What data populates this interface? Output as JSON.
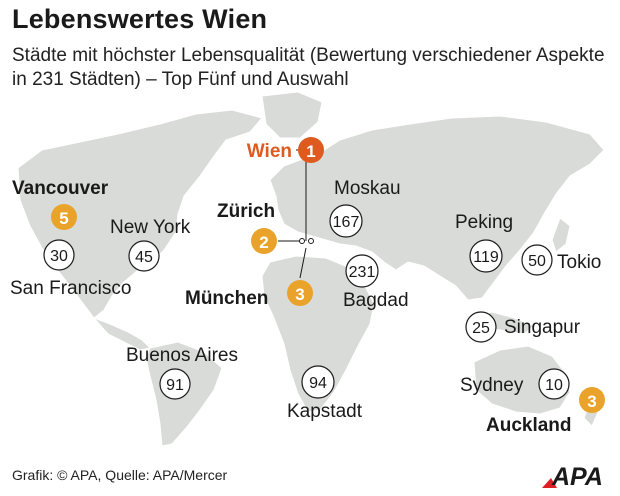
{
  "title": "Lebenswertes Wien",
  "subtitle": "Städte mit höchster Lebensqualität (Bewertung verschiedener Aspekte in 231 Städten) – Top Fünf und Auswahl",
  "source": "Grafik: © APA, Quelle: APA/Mercer",
  "logo_text": "APA",
  "colors": {
    "map": "#d9dbd8",
    "top_gold": "#e9a32a",
    "wien_red": "#de5a1f",
    "outline": "#1a1a1a"
  },
  "cities": [
    {
      "name": "Wien",
      "rank": "1"
    },
    {
      "name": "Zürich",
      "rank": "2"
    },
    {
      "name": "München",
      "rank": "3"
    },
    {
      "name": "Auckland",
      "rank": "3"
    },
    {
      "name": "Vancouver",
      "rank": "5"
    },
    {
      "name": "San Francisco",
      "rank": "30"
    },
    {
      "name": "New York",
      "rank": "45"
    },
    {
      "name": "Buenos Aires",
      "rank": "91"
    },
    {
      "name": "Kapstadt",
      "rank": "94"
    },
    {
      "name": "Moskau",
      "rank": "167"
    },
    {
      "name": "Bagdad",
      "rank": "231"
    },
    {
      "name": "Peking",
      "rank": "119"
    },
    {
      "name": "Tokio",
      "rank": "50"
    },
    {
      "name": "Singapur",
      "rank": "25"
    },
    {
      "name": "Sydney",
      "rank": "10"
    }
  ]
}
